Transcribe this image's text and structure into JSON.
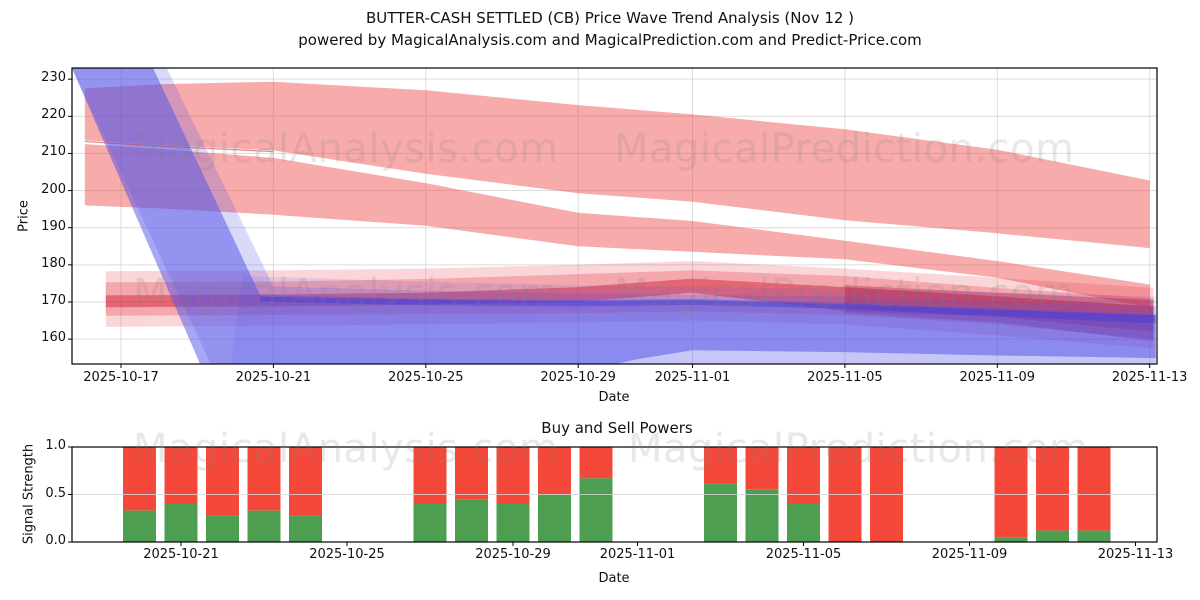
{
  "page": {
    "title_line1": "BUTTER-CASH SETTLED (CB) Price Wave Trend Analysis (Nov 12 )",
    "title_line2": "powered by MagicalAnalysis.com and MagicalPrediction.com and Predict-Price.com"
  },
  "watermarks": {
    "analysis": "MagicalAnalysis.com",
    "prediction": "MagicalPrediction.com"
  },
  "chart_data": [
    {
      "type": "area",
      "name": "price-wave-trend",
      "title": "",
      "xlabel": "Date",
      "ylabel": "Price",
      "epoch": "2025-10-16",
      "xlim_days": [
        -0.29,
        28.16
      ],
      "ylim": [
        153.3,
        233.0
      ],
      "grid": true,
      "x_ticks": [
        {
          "d": 1,
          "label": "2025-10-17"
        },
        {
          "d": 5,
          "label": "2025-10-21"
        },
        {
          "d": 9,
          "label": "2025-10-25"
        },
        {
          "d": 13,
          "label": "2025-10-29"
        },
        {
          "d": 16,
          "label": "2025-11-01"
        },
        {
          "d": 20,
          "label": "2025-11-05"
        },
        {
          "d": 24,
          "label": "2025-11-09"
        },
        {
          "d": 28,
          "label": "2025-11-13"
        }
      ],
      "y_ticks": [
        {
          "v": 160,
          "label": "160"
        },
        {
          "v": 170,
          "label": "170"
        },
        {
          "v": 180,
          "label": "180"
        },
        {
          "v": 190,
          "label": "190"
        },
        {
          "v": 200,
          "label": "200"
        },
        {
          "v": 210,
          "label": "210"
        },
        {
          "v": 220,
          "label": "220"
        },
        {
          "v": 230,
          "label": "230"
        }
      ],
      "bands": [
        {
          "name": "red-upper-band",
          "color": "#ee4444",
          "alpha": 0.45,
          "d": [
            0.05,
            2,
            5,
            9,
            13,
            16,
            20,
            24,
            28
          ],
          "upper": [
            227.5,
            228.6,
            229.3,
            227.0,
            223.0,
            220.5,
            216.5,
            211.0,
            202.7
          ],
          "lower": [
            213.5,
            212.3,
            210.8,
            204.5,
            199.3,
            197.0,
            192.0,
            188.5,
            184.5
          ]
        },
        {
          "name": "red-lower-band",
          "color": "#ee4444",
          "alpha": 0.45,
          "d": [
            0.05,
            2,
            5,
            9,
            13,
            16,
            20,
            24,
            28
          ],
          "upper": [
            212.5,
            211.2,
            208.8,
            202.0,
            194.0,
            191.8,
            186.5,
            181.0,
            174.7
          ],
          "lower": [
            196.0,
            195.2,
            193.5,
            190.5,
            185.0,
            183.5,
            181.5,
            176.5,
            168.5
          ]
        },
        {
          "name": "red-mid-outer",
          "color": "#e83040",
          "alpha": 0.2,
          "d": [
            0.6,
            5,
            9,
            13,
            16,
            20,
            24,
            28.1
          ],
          "upper": [
            178.3,
            178.5,
            179.0,
            180.0,
            181.0,
            179.0,
            176.5,
            173.8
          ],
          "lower": [
            163.3,
            163.6,
            164.0,
            164.5,
            165.0,
            164.0,
            161.0,
            157.5
          ]
        },
        {
          "name": "red-mid-inner",
          "color": "#e83040",
          "alpha": 0.28,
          "d": [
            0.6,
            5,
            9,
            13,
            16,
            20,
            24,
            28.1
          ],
          "upper": [
            175.3,
            175.5,
            176.2,
            177.5,
            178.5,
            177.0,
            173.8,
            171.0
          ],
          "lower": [
            166.3,
            166.5,
            166.8,
            167.0,
            167.5,
            166.5,
            164.0,
            160.0
          ]
        },
        {
          "name": "red-mid-core",
          "color": "#d01830",
          "alpha": 0.45,
          "d": [
            0.6,
            5,
            9,
            13,
            16,
            20,
            24,
            28.1
          ],
          "upper": [
            171.8,
            172.0,
            172.5,
            174.0,
            176.3,
            174.0,
            171.5,
            168.8
          ],
          "lower": [
            168.6,
            168.8,
            169.3,
            170.0,
            172.5,
            167.5,
            166.0,
            162.0
          ]
        },
        {
          "name": "red-dark-right-patch",
          "color": "#aa1133",
          "alpha": 0.35,
          "d": [
            20,
            24,
            28.1
          ],
          "upper": [
            174.5,
            172.5,
            170.5
          ],
          "lower": [
            167.0,
            164.5,
            159.5
          ]
        },
        {
          "name": "blue-band-main",
          "color": "#5050e8",
          "alpha": 0.5,
          "points": [
            [
              -0.29,
              233
            ],
            [
              1.84,
              233
            ],
            [
              4.65,
              171.8
            ],
            [
              9,
              170.9
            ],
            [
              13,
              170.5
            ],
            [
              16,
              170.8
            ],
            [
              20,
              169.7
            ],
            [
              24,
              168.2
            ],
            [
              28.16,
              166.6
            ],
            [
              28.16,
              154.9
            ],
            [
              24,
              155.6
            ],
            [
              20,
              156.5
            ],
            [
              16,
              157.0
            ],
            [
              14.5,
              154.5
            ],
            [
              13,
              151.0
            ],
            [
              9,
              148.5
            ],
            [
              4.65,
              148
            ],
            [
              3.3,
              148
            ]
          ]
        },
        {
          "name": "blue-band-soft",
          "color": "#5050e8",
          "alpha": 0.22,
          "points": [
            [
              -0.29,
              233
            ],
            [
              2.2,
              233
            ],
            [
              5.0,
              174.2
            ],
            [
              9,
              173.0
            ],
            [
              13,
              172.3
            ],
            [
              20,
              171.5
            ],
            [
              24,
              170.0
            ],
            [
              28.16,
              168.9
            ],
            [
              28.16,
              148
            ],
            [
              3.6,
              148
            ]
          ]
        },
        {
          "name": "blue-band-faint",
          "color": "#5050e8",
          "alpha": 0.13,
          "points": [
            [
              4.2,
              177
            ],
            [
              9,
              175.5
            ],
            [
              13,
              174.5
            ],
            [
              20,
              173.5
            ],
            [
              28.16,
              171.5
            ],
            [
              28.16,
              148
            ],
            [
              3.8,
              148
            ]
          ]
        },
        {
          "name": "blue-band-core",
          "color": "#3838dd",
          "alpha": 0.4,
          "points": [
            [
              4.65,
              171.4
            ],
            [
              9,
              170.6
            ],
            [
              13,
              170.2
            ],
            [
              16,
              170.5
            ],
            [
              20,
              169.4
            ],
            [
              24,
              167.9
            ],
            [
              28.16,
              166.4
            ],
            [
              28.16,
              164.2
            ],
            [
              24,
              166.2
            ],
            [
              20,
              168.2
            ],
            [
              16,
              169.2
            ],
            [
              13,
              168.8
            ],
            [
              9,
              169.1
            ],
            [
              4.65,
              170.2
            ]
          ]
        }
      ],
      "lines": [
        {
          "name": "band-seam-line",
          "color": "#cc3344",
          "alpha": 0.55,
          "width": 1.3,
          "points": [
            [
              0.05,
              213.2
            ],
            [
              2,
              212.0
            ],
            [
              5,
              210.5
            ]
          ]
        }
      ]
    },
    {
      "type": "bar",
      "name": "buy-sell-powers",
      "title": "Buy and Sell Powers",
      "xlabel": "Date",
      "ylabel": "Signal Strength",
      "epoch": "2025-10-16",
      "xlim_days": [
        2.37,
        28.55
      ],
      "ylim": [
        0,
        1
      ],
      "legend": "none",
      "colors": {
        "buy": "#4d9e50",
        "sell": "#f4483a"
      },
      "x_ticks": [
        {
          "d": 5,
          "label": "2025-10-21"
        },
        {
          "d": 9,
          "label": "2025-10-25"
        },
        {
          "d": 13,
          "label": "2025-10-29"
        },
        {
          "d": 16,
          "label": "2025-11-01"
        },
        {
          "d": 20,
          "label": "2025-11-05"
        },
        {
          "d": 24,
          "label": "2025-11-09"
        },
        {
          "d": 28,
          "label": "2025-11-13"
        }
      ],
      "y_ticks": [
        {
          "v": 0,
          "label": "0.0"
        },
        {
          "v": 0.5,
          "label": "0.5"
        },
        {
          "v": 1,
          "label": "1.0"
        }
      ],
      "bars": [
        {
          "date": "2025-10-20",
          "d": 4,
          "buy": 0.33,
          "sell": 0.67
        },
        {
          "date": "2025-10-21",
          "d": 5,
          "buy": 0.4,
          "sell": 0.6
        },
        {
          "date": "2025-10-22",
          "d": 6,
          "buy": 0.28,
          "sell": 0.72
        },
        {
          "date": "2025-10-23",
          "d": 7,
          "buy": 0.33,
          "sell": 0.67
        },
        {
          "date": "2025-10-24",
          "d": 8,
          "buy": 0.28,
          "sell": 0.72
        },
        {
          "date": "2025-10-27",
          "d": 11,
          "buy": 0.4,
          "sell": 0.6
        },
        {
          "date": "2025-10-28",
          "d": 12,
          "buy": 0.45,
          "sell": 0.55
        },
        {
          "date": "2025-10-29",
          "d": 13,
          "buy": 0.4,
          "sell": 0.6
        },
        {
          "date": "2025-10-30",
          "d": 14,
          "buy": 0.5,
          "sell": 0.5
        },
        {
          "date": "2025-10-31",
          "d": 15,
          "buy": 0.67,
          "sell": 0.33
        },
        {
          "date": "2025-11-03",
          "d": 18,
          "buy": 0.62,
          "sell": 0.38
        },
        {
          "date": "2025-11-04",
          "d": 19,
          "buy": 0.55,
          "sell": 0.45
        },
        {
          "date": "2025-11-05",
          "d": 20,
          "buy": 0.4,
          "sell": 0.6
        },
        {
          "date": "2025-11-06",
          "d": 21,
          "buy": 0.0,
          "sell": 1.0
        },
        {
          "date": "2025-11-07",
          "d": 22,
          "buy": 0.0,
          "sell": 1.0
        },
        {
          "date": "2025-11-10",
          "d": 25,
          "buy": 0.05,
          "sell": 0.95
        },
        {
          "date": "2025-11-11",
          "d": 26,
          "buy": 0.12,
          "sell": 0.88
        },
        {
          "date": "2025-11-12",
          "d": 27,
          "buy": 0.12,
          "sell": 0.88
        }
      ]
    }
  ]
}
